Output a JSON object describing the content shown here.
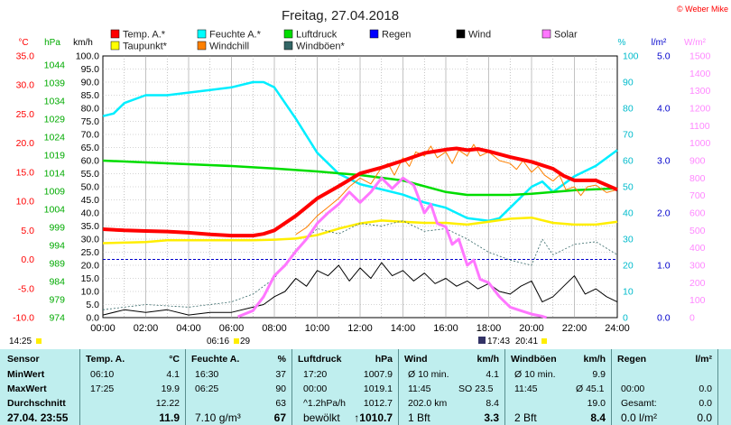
{
  "title": "Freitag, 27.04.2018",
  "copyright": "© Weber Mike",
  "colors": {
    "temp": "#ff0000",
    "feuchte": "#00ffff",
    "luftdruck": "#00dd00",
    "regen": "#0000ff",
    "wind": "#000000",
    "solar": "#ff77ff",
    "taupunkt": "#ffff00",
    "windchill": "#ff8000",
    "windboeen": "#336666"
  },
  "legend": [
    {
      "label": "Temp. A.*",
      "color": "#ff0000"
    },
    {
      "label": "Feuchte A.*",
      "color": "#00ffff"
    },
    {
      "label": "Luftdruck",
      "color": "#00dd00"
    },
    {
      "label": "Regen",
      "color": "#0000ff"
    },
    {
      "label": "Wind",
      "color": "#000000"
    },
    {
      "label": "Solar",
      "color": "#ff77ff"
    },
    {
      "label": "Taupunkt*",
      "color": "#ffff00"
    },
    {
      "label": "Windchill",
      "color": "#ff8000"
    },
    {
      "label": "Windböen*",
      "color": "#336666"
    }
  ],
  "axis_units": {
    "temp": "°C",
    "pressure": "hPa",
    "wind": "km/h",
    "humidity": "%",
    "rain": "l/m²",
    "solar": "W/m²"
  },
  "below_axis_labels": {
    "left_time": "14:25",
    "sunrise": "06:16",
    "sunrise2": "29",
    "sunset": "17:43",
    "sunset2": "20:41"
  },
  "chart_data": {
    "type": "line",
    "x_label_ticks": [
      "00:00",
      "02:00",
      "04:00",
      "06:00",
      "08:00",
      "10:00",
      "12:00",
      "14:00",
      "16:00",
      "18:00",
      "20:00",
      "22:00",
      "24:00"
    ],
    "axes": {
      "temp_c": {
        "range": [
          -10,
          35
        ],
        "ticks": [
          "35.0",
          "30.0",
          "25.0",
          "20.0",
          "15.0",
          "10.0",
          "5.0",
          "0.0",
          "-5.0",
          "-10.0"
        ]
      },
      "pressure_hpa": {
        "range": [
          974,
          1046.5
        ],
        "ticks": [
          "1044",
          "1039",
          "1034",
          "1029",
          "1024",
          "1019",
          "1014",
          "1009",
          "1004",
          "999",
          "994",
          "989",
          "984",
          "979",
          "974"
        ]
      },
      "wind_kmh": {
        "range": [
          0,
          100
        ],
        "ticks": [
          "100.0",
          "95.0",
          "90.0",
          "85.0",
          "80.0",
          "75.0",
          "70.0",
          "65.0",
          "60.0",
          "55.0",
          "50.0",
          "45.0",
          "40.0",
          "35.0",
          "30.0",
          "25.0",
          "20.0",
          "15.0",
          "10.0",
          "5.0",
          "0.0"
        ]
      },
      "humidity_pct": {
        "range": [
          0,
          100
        ],
        "ticks": [
          "100",
          "90",
          "80",
          "70",
          "60",
          "50",
          "40",
          "30",
          "20",
          "10",
          "0"
        ]
      },
      "rain_lm2": {
        "range": [
          0,
          5
        ],
        "ticks": [
          "5.0",
          "4.0",
          "3.0",
          "2.0",
          "1.0",
          "0.0"
        ]
      },
      "solar_wm2": {
        "range": [
          0,
          1500
        ],
        "ticks": [
          "1500",
          "1400",
          "1300",
          "1200",
          "1100",
          "1000",
          "900",
          "800",
          "700",
          "600",
          "500",
          "400",
          "300",
          "200",
          "100",
          "0"
        ]
      }
    },
    "series": [
      {
        "name": "Temp. A.*",
        "axis": "temp_c",
        "x": [
          0,
          1,
          2,
          3,
          4,
          5,
          6,
          7,
          7.5,
          8,
          9,
          10,
          11,
          12,
          13,
          14,
          15,
          16,
          16.5,
          17,
          17.5,
          18,
          19,
          20,
          21,
          21.5,
          22,
          23,
          24
        ],
        "y": [
          5.2,
          5.0,
          4.9,
          4.8,
          4.6,
          4.3,
          4.1,
          4.1,
          4.4,
          5.0,
          7.5,
          10.5,
          12.6,
          14.8,
          15.8,
          17.0,
          18.3,
          18.9,
          19.1,
          18.8,
          19.0,
          18.6,
          17.6,
          16.8,
          15.6,
          14.4,
          13.6,
          13.6,
          12.0
        ]
      },
      {
        "name": "Feuchte A.*",
        "axis": "humidity_pct",
        "x": [
          0,
          0.5,
          1,
          2,
          3,
          4,
          5,
          6,
          7,
          7.5,
          8,
          9,
          10,
          11,
          12,
          13,
          14,
          15,
          16,
          17,
          18,
          18.5,
          19,
          20,
          20.5,
          21,
          22,
          23,
          24
        ],
        "y": [
          77,
          78,
          82,
          85,
          85,
          86,
          87,
          88,
          90,
          90,
          88,
          76,
          63,
          55,
          51,
          49,
          47,
          44,
          42,
          38,
          37,
          38,
          42,
          50,
          52,
          48,
          54,
          58,
          64
        ]
      },
      {
        "name": "Luftdruck",
        "axis": "pressure_hpa",
        "x": [
          0,
          2,
          4,
          6,
          8,
          10,
          12,
          14,
          16,
          17,
          18,
          19,
          20,
          22,
          24
        ],
        "y": [
          1017.5,
          1017.0,
          1016.5,
          1016.0,
          1015.3,
          1014.5,
          1013.5,
          1012.0,
          1008.8,
          1008.0,
          1008.0,
          1008.0,
          1008.3,
          1009.3,
          1009.8
        ]
      },
      {
        "name": "Taupunkt*",
        "axis": "temp_c",
        "x": [
          0,
          1,
          2,
          3,
          4,
          5,
          6,
          7,
          8,
          9,
          10,
          11,
          12,
          13,
          14,
          15,
          16,
          17,
          18,
          19,
          20,
          21,
          22,
          23,
          24
        ],
        "y": [
          2.8,
          2.9,
          3.0,
          3.3,
          3.3,
          3.3,
          3.3,
          3.3,
          3.4,
          3.6,
          4.2,
          5.3,
          6.2,
          6.7,
          6.5,
          6.3,
          6.3,
          6.0,
          6.5,
          7.0,
          7.2,
          6.3,
          6.0,
          6.0,
          6.5
        ]
      },
      {
        "name": "Windchill",
        "axis": "temp_c",
        "x": [
          9,
          9.5,
          10,
          10.5,
          11,
          11.5,
          12,
          12.5,
          13,
          13.3,
          13.6,
          14,
          14.3,
          14.6,
          15,
          15.3,
          15.6,
          16,
          16.3,
          16.6,
          17,
          17.3,
          17.6,
          18,
          18.5,
          19,
          19.3,
          19.6,
          20,
          20.3,
          20.6,
          21,
          21.3,
          21.6,
          22,
          22.3,
          22.6,
          23,
          23.5,
          24
        ],
        "y": [
          4.3,
          5.5,
          7.5,
          9.0,
          10.5,
          12.5,
          14.0,
          13.0,
          15.8,
          16.5,
          14.5,
          17.5,
          16.0,
          18.5,
          17.8,
          19.5,
          17.5,
          18.5,
          16.5,
          18.8,
          17.8,
          19.8,
          17.8,
          18.5,
          17.0,
          16.5,
          15.5,
          17.0,
          15.0,
          16.0,
          14.5,
          13.5,
          14.5,
          12.0,
          12.5,
          11.0,
          12.5,
          12.8,
          11.5,
          12.0
        ]
      },
      {
        "name": "Wind",
        "axis": "wind_kmh",
        "x": [
          0,
          1,
          2,
          3,
          4,
          5,
          6,
          7,
          7.5,
          8,
          8.5,
          9,
          9.5,
          10,
          10.5,
          11,
          11.5,
          12,
          12.5,
          13,
          13.5,
          14,
          14.5,
          15,
          15.5,
          16,
          16.5,
          17,
          17.5,
          18,
          18.5,
          19,
          19.5,
          20,
          20.5,
          21,
          21.5,
          22,
          22.5,
          23,
          23.5,
          24
        ],
        "y": [
          1,
          3,
          2,
          3,
          1,
          2,
          2,
          4,
          5,
          8,
          10,
          15,
          12,
          18,
          16,
          20,
          14,
          19,
          15,
          21,
          16,
          18,
          14,
          17,
          13,
          15,
          12,
          14,
          11,
          13,
          10,
          9,
          12,
          14,
          6,
          8,
          12,
          16,
          9,
          11,
          8,
          6
        ]
      },
      {
        "name": "Windböen*",
        "axis": "wind_kmh",
        "x": [
          0,
          2,
          4,
          6,
          7,
          8,
          9,
          10,
          11,
          12,
          13,
          14,
          15,
          16,
          17,
          18,
          19,
          20,
          20.5,
          21,
          22,
          23,
          24
        ],
        "y": [
          3,
          5,
          4,
          6,
          9,
          15,
          26,
          34,
          32,
          36,
          35,
          37,
          33,
          34,
          30,
          25,
          22,
          20,
          30,
          24,
          28,
          29,
          24
        ]
      },
      {
        "name": "Solar",
        "axis": "solar_wm2",
        "x": [
          6.3,
          7,
          7.5,
          8,
          8.5,
          9,
          9.5,
          10,
          10.5,
          11,
          11.5,
          12,
          12.5,
          13,
          13.5,
          14,
          14.5,
          15,
          15.3,
          15.6,
          16,
          16.3,
          16.6,
          17,
          17.3,
          17.6,
          18,
          18.5,
          19,
          19.5,
          20,
          20.5,
          20.7
        ],
        "y": [
          5,
          40,
          120,
          240,
          300,
          380,
          450,
          540,
          600,
          650,
          720,
          660,
          720,
          800,
          740,
          800,
          760,
          600,
          650,
          540,
          520,
          420,
          450,
          300,
          330,
          220,
          200,
          120,
          60,
          40,
          20,
          8,
          0
        ]
      }
    ]
  },
  "table": {
    "headers": [
      "Sensor",
      "Temp. A.",
      "°C",
      "Feuchte A.",
      "%",
      "Luftdruck",
      "hPa",
      "Wind",
      "km/h",
      "Windböen",
      "km/h",
      "Regen",
      "l/m²"
    ],
    "rows": [
      {
        "label": "MinWert",
        "temp_time": "06:10",
        "temp_val": "4.1",
        "hum_time": "16:30",
        "hum_val": "37",
        "press_time": "17:20",
        "press_val": "1007.9",
        "wind_a": "Ø 10 min.",
        "wind_b": "",
        "wind_val": "4.1",
        "gust_a": "Ø 10 min.",
        "gust_val": "9.9",
        "rain_a": "",
        "rain_val": ""
      },
      {
        "label": "MaxWert",
        "temp_time": "17:25",
        "temp_val": "19.9",
        "hum_time": "06:25",
        "hum_val": "90",
        "press_time": "00:00",
        "press_val": "1019.1",
        "wind_a": "11:45",
        "wind_b": "SO 23.5",
        "wind_val": "",
        "gust_a": "11:45",
        "gust_b": "Ø 45.1",
        "gust_val": "",
        "rain_a": "00:00",
        "rain_val": "0.0"
      },
      {
        "label": "Durchschnitt",
        "temp_time": "",
        "temp_val": "12.22",
        "hum_time": "",
        "hum_val": "63",
        "press_time": "^1.2hPa/h",
        "press_val": "1012.7",
        "wind_a": "202.0 km",
        "wind_b": "",
        "wind_val": "8.4",
        "gust_a": "",
        "gust_val": "19.0",
        "rain_a": "Gesamt:",
        "rain_val": "0.0"
      },
      {
        "label": "27.04. 23:55",
        "temp_time": "",
        "temp_val": "11.9",
        "hum_time": "7.10 g/m³",
        "hum_val": "67",
        "press_time": "bewölkt",
        "press_val": "↑1010.7",
        "wind_a": "1 Bft",
        "wind_b": "",
        "wind_val": "3.3",
        "gust_a": "2 Bft",
        "gust_val": "8.4",
        "rain_a": "0.0 l/m²",
        "rain_val": "0.0"
      }
    ]
  }
}
